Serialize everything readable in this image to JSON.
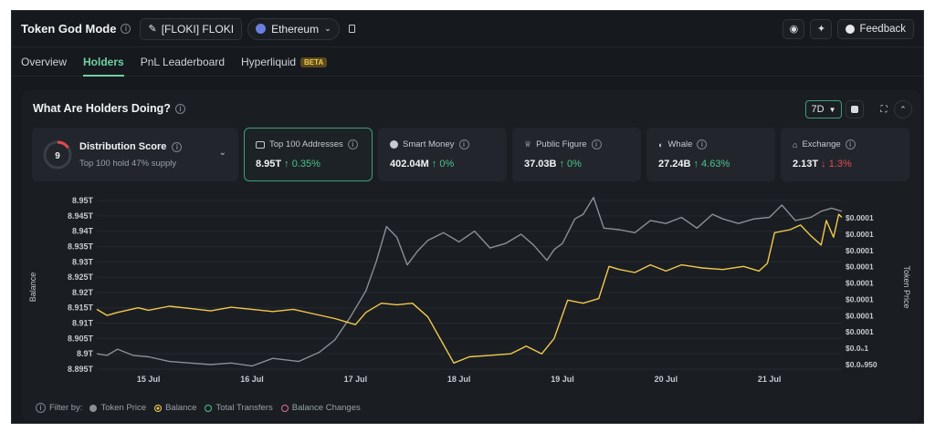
{
  "header": {
    "title": "Token God Mode",
    "token_label": "[FLOKI] FLOKI",
    "network_label": "Ethereum",
    "feedback_label": "Feedback"
  },
  "tabs": [
    {
      "label": "Overview"
    },
    {
      "label": "Holders"
    },
    {
      "label": "PnL Leaderboard"
    },
    {
      "label": "Hyperliquid",
      "badge": "BETA"
    }
  ],
  "panel": {
    "title": "What Are Holders Doing?",
    "range_label": "7D"
  },
  "distribution": {
    "score": "9",
    "title": "Distribution Score",
    "subtitle": "Top 100 hold 47% supply"
  },
  "cards": [
    {
      "label": "Top 100 Addresses",
      "value": "8.95T",
      "change": "↑ 0.35%",
      "direction": "up"
    },
    {
      "label": "Smart Money",
      "value": "402.04M",
      "change": "↑ 0%",
      "direction": "up"
    },
    {
      "label": "Public Figure",
      "value": "37.03B",
      "change": "↑ 0%",
      "direction": "up"
    },
    {
      "label": "Whale",
      "value": "27.24B",
      "change": "↑ 4.63%",
      "direction": "up"
    },
    {
      "label": "Exchange",
      "value": "2.13T",
      "change": "↓ 1.3%",
      "direction": "down"
    }
  ],
  "chart_data": {
    "type": "line",
    "ylabel": "Balance",
    "y2label": "Token Price",
    "y_ticks": [
      "8.95T",
      "8.945T",
      "8.94T",
      "8.935T",
      "8.93T",
      "8.925T",
      "8.92T",
      "8.915T",
      "8.91T",
      "8.905T",
      "8.9T",
      "8.895T"
    ],
    "y2_ticks": [
      "$0.0001",
      "$0.0001",
      "$0.0001",
      "$0.0001",
      "$0.0001",
      "$0.0001",
      "$0.0001",
      "$0.0001",
      "$0.0₀1",
      "$0.0₀950"
    ],
    "x_ticks": [
      "15 Jul",
      "16 Jul",
      "17 Jul",
      "18 Jul",
      "19 Jul",
      "20 Jul",
      "21 Jul"
    ],
    "x_range": [
      14.5,
      21.7
    ],
    "series": [
      {
        "name": "Balance",
        "color": "#f2c94c",
        "axis": "left",
        "points": [
          [
            14.5,
            8.9145
          ],
          [
            14.6,
            8.9125
          ],
          [
            14.7,
            8.9135
          ],
          [
            14.9,
            8.915
          ],
          [
            15.0,
            8.9142
          ],
          [
            15.2,
            8.9155
          ],
          [
            15.4,
            8.9148
          ],
          [
            15.6,
            8.914
          ],
          [
            15.8,
            8.9152
          ],
          [
            16.0,
            8.9145
          ],
          [
            16.2,
            8.9138
          ],
          [
            16.4,
            8.9145
          ],
          [
            16.6,
            8.913
          ],
          [
            16.8,
            8.9115
          ],
          [
            17.0,
            8.9095
          ],
          [
            17.1,
            8.9135
          ],
          [
            17.25,
            8.9165
          ],
          [
            17.4,
            8.916
          ],
          [
            17.55,
            8.9165
          ],
          [
            17.7,
            8.912
          ],
          [
            17.85,
            8.903
          ],
          [
            17.95,
            8.897
          ],
          [
            18.1,
            8.899
          ],
          [
            18.3,
            8.8995
          ],
          [
            18.5,
            8.9
          ],
          [
            18.65,
            8.9025
          ],
          [
            18.8,
            8.9
          ],
          [
            18.92,
            8.905
          ],
          [
            19.05,
            8.9175
          ],
          [
            19.2,
            8.9165
          ],
          [
            19.35,
            8.918
          ],
          [
            19.45,
            8.9285
          ],
          [
            19.55,
            8.9275
          ],
          [
            19.7,
            8.9265
          ],
          [
            19.85,
            8.929
          ],
          [
            20.0,
            8.927
          ],
          [
            20.15,
            8.929
          ],
          [
            20.35,
            8.928
          ],
          [
            20.55,
            8.9275
          ],
          [
            20.75,
            8.9285
          ],
          [
            20.9,
            8.927
          ],
          [
            20.98,
            8.9295
          ],
          [
            21.05,
            8.9395
          ],
          [
            21.2,
            8.9405
          ],
          [
            21.3,
            8.942
          ],
          [
            21.4,
            8.9385
          ],
          [
            21.5,
            8.9355
          ],
          [
            21.55,
            8.9435
          ],
          [
            21.62,
            8.938
          ],
          [
            21.67,
            8.9455
          ],
          [
            21.7,
            8.9445
          ]
        ]
      },
      {
        "name": "Token Price",
        "color": "#8a8f96",
        "axis": "right",
        "points": [
          [
            14.5,
            8.9
          ],
          [
            14.6,
            8.8995
          ],
          [
            14.7,
            8.9015
          ],
          [
            14.85,
            8.8995
          ],
          [
            15.0,
            8.899
          ],
          [
            15.2,
            8.8975
          ],
          [
            15.4,
            8.897
          ],
          [
            15.6,
            8.8965
          ],
          [
            15.8,
            8.897
          ],
          [
            16.0,
            8.896
          ],
          [
            16.2,
            8.8985
          ],
          [
            16.45,
            8.8975
          ],
          [
            16.65,
            8.9005
          ],
          [
            16.8,
            8.9045
          ],
          [
            16.95,
            8.912
          ],
          [
            17.1,
            8.9205
          ],
          [
            17.2,
            8.93
          ],
          [
            17.3,
            8.9415
          ],
          [
            17.4,
            8.938
          ],
          [
            17.5,
            8.929
          ],
          [
            17.6,
            8.9335
          ],
          [
            17.7,
            8.937
          ],
          [
            17.85,
            8.9395
          ],
          [
            18.0,
            8.9365
          ],
          [
            18.15,
            8.94
          ],
          [
            18.3,
            8.9345
          ],
          [
            18.45,
            8.936
          ],
          [
            18.6,
            8.939
          ],
          [
            18.72,
            8.9355
          ],
          [
            18.85,
            8.9305
          ],
          [
            18.92,
            8.934
          ],
          [
            19.0,
            8.936
          ],
          [
            19.12,
            8.944
          ],
          [
            19.2,
            8.9455
          ],
          [
            19.3,
            8.951
          ],
          [
            19.4,
            8.941
          ],
          [
            19.55,
            8.9405
          ],
          [
            19.7,
            8.9395
          ],
          [
            19.85,
            8.9435
          ],
          [
            20.0,
            8.9425
          ],
          [
            20.15,
            8.9445
          ],
          [
            20.3,
            8.941
          ],
          [
            20.45,
            8.9455
          ],
          [
            20.55,
            8.944
          ],
          [
            20.7,
            8.9425
          ],
          [
            20.85,
            8.944
          ],
          [
            21.0,
            8.9445
          ],
          [
            21.12,
            8.9485
          ],
          [
            21.25,
            8.9435
          ],
          [
            21.4,
            8.9445
          ],
          [
            21.5,
            8.9465
          ],
          [
            21.6,
            8.9475
          ],
          [
            21.7,
            8.9465
          ]
        ]
      }
    ],
    "y_range": [
      8.895,
      8.95
    ]
  },
  "legend": {
    "filter_label": "Filter by:",
    "items": [
      {
        "label": "Token Price",
        "color": "#8a8f96",
        "style": "filled"
      },
      {
        "label": "Balance",
        "color": "#f2c94c",
        "style": "ring"
      },
      {
        "label": "Total Transfers",
        "color": "#4cc38a",
        "style": "ring"
      },
      {
        "label": "Balance Changes",
        "color": "#e06c9f",
        "style": "ring"
      }
    ]
  }
}
